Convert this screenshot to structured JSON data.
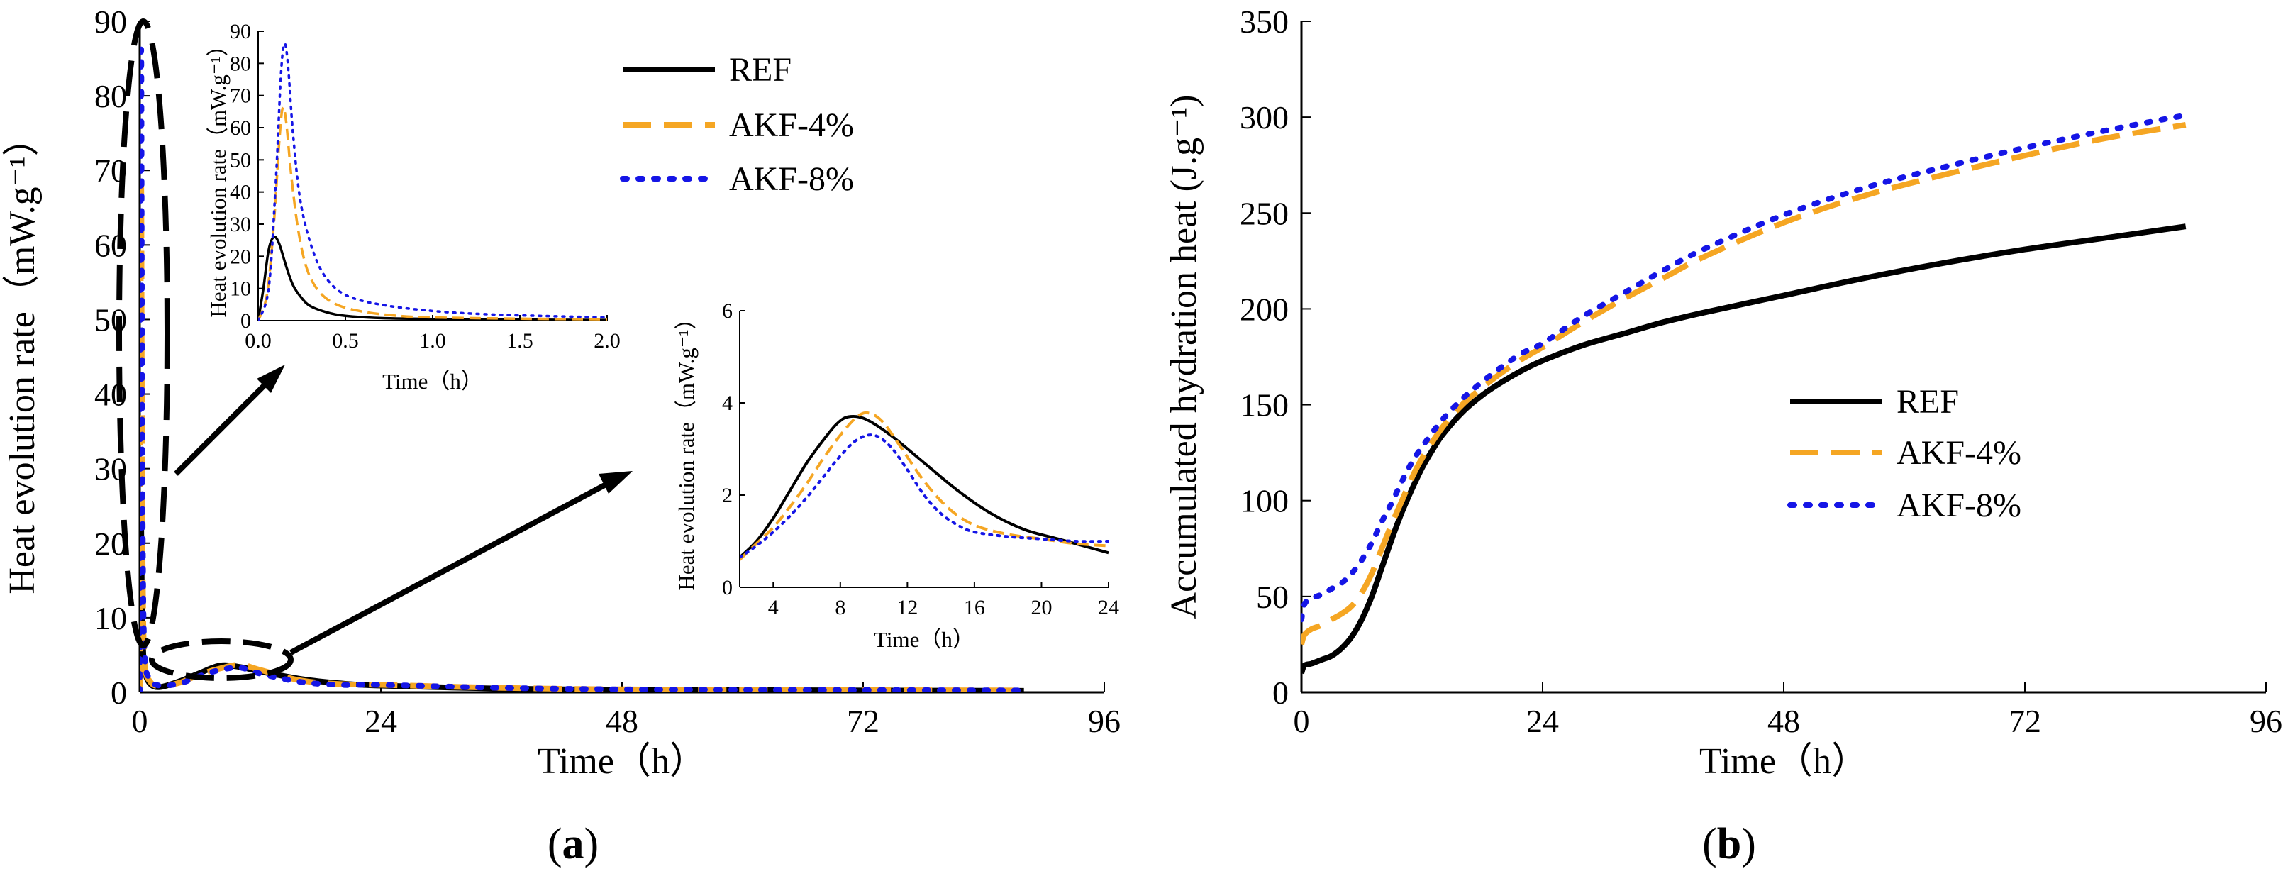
{
  "colors": {
    "REF": "#000000",
    "AKF-4%": "#f5a623",
    "AKF-8%": "#1515e6"
  },
  "legend": [
    "REF",
    "AKF-4%",
    "AKF-8%"
  ],
  "panel_labels": {
    "a_open": "(",
    "a_letter": "a",
    "a_close": ")",
    "b_open": "(",
    "b_letter": "b",
    "b_close": ")"
  },
  "chart_data": [
    {
      "id": "a-main",
      "type": "line",
      "xlabel": "Time（h）",
      "ylabel": "Heat evolution rate（mW.g⁻¹）",
      "xlim": [
        0,
        96
      ],
      "ylim": [
        0,
        90
      ],
      "xticks": [
        0,
        24,
        48,
        72,
        96
      ],
      "yticks": [
        0,
        10,
        20,
        30,
        40,
        50,
        60,
        70,
        80,
        90
      ],
      "series": [
        {
          "name": "REF",
          "x": [
            0,
            0.05,
            0.1,
            0.15,
            0.2,
            0.3,
            0.5,
            1,
            2,
            4,
            6,
            8,
            10,
            12,
            16,
            20,
            24,
            36,
            48,
            60,
            72,
            88
          ],
          "y": [
            0,
            15,
            25,
            22,
            15,
            7,
            3,
            1.2,
            0.7,
            1.5,
            2.6,
            3.6,
            3.4,
            2.8,
            1.8,
            1.2,
            0.9,
            0.5,
            0.35,
            0.3,
            0.25,
            0.2
          ]
        },
        {
          "name": "AKF-4%",
          "x": [
            0,
            0.05,
            0.1,
            0.15,
            0.2,
            0.3,
            0.5,
            1,
            2,
            4,
            6,
            8,
            10,
            12,
            16,
            20,
            24,
            36,
            48,
            60,
            72,
            88
          ],
          "y": [
            0,
            25,
            55,
            68,
            45,
            15,
            4,
            1.5,
            0.8,
            1.3,
            2.4,
            3.2,
            3.7,
            3.0,
            1.6,
            1.1,
            1.0,
            0.6,
            0.4,
            0.35,
            0.3,
            0.25
          ]
        },
        {
          "name": "AKF-8%",
          "x": [
            0,
            0.05,
            0.1,
            0.15,
            0.2,
            0.3,
            0.5,
            1,
            2,
            4,
            6,
            8,
            10,
            12,
            16,
            20,
            24,
            36,
            48,
            60,
            72,
            88
          ],
          "y": [
            0,
            30,
            70,
            86,
            60,
            20,
            5,
            1.8,
            0.9,
            1.2,
            2.2,
            3.0,
            3.3,
            2.5,
            1.4,
            1.0,
            1.0,
            0.6,
            0.4,
            0.35,
            0.3,
            0.25
          ]
        }
      ]
    },
    {
      "id": "a-inset-early",
      "type": "line",
      "xlabel": "Time（h）",
      "ylabel": "Heat evolution rate（mW.g⁻¹）",
      "xlim": [
        0,
        2.0
      ],
      "ylim": [
        0,
        90
      ],
      "xticks": [
        "0.0",
        "0.5",
        "1.0",
        "1.5",
        "2.0"
      ],
      "yticks": [
        0,
        10,
        20,
        30,
        40,
        50,
        60,
        70,
        80,
        90
      ],
      "series": [
        {
          "name": "REF",
          "x": [
            0,
            0.03,
            0.06,
            0.09,
            0.12,
            0.16,
            0.2,
            0.25,
            0.3,
            0.4,
            0.5,
            0.7,
            1.0,
            1.5,
            2.0
          ],
          "y": [
            0,
            10,
            22,
            26,
            24,
            17,
            11,
            7,
            4.5,
            2.5,
            1.5,
            0.8,
            0.5,
            0.3,
            0.2
          ]
        },
        {
          "name": "AKF-4%",
          "x": [
            0,
            0.05,
            0.09,
            0.12,
            0.14,
            0.16,
            0.19,
            0.23,
            0.28,
            0.35,
            0.45,
            0.6,
            0.8,
            1.0,
            1.5,
            2.0
          ],
          "y": [
            0,
            8,
            30,
            55,
            66,
            62,
            45,
            28,
            16,
            9,
            5,
            2.8,
            1.5,
            1.0,
            0.6,
            0.4
          ]
        },
        {
          "name": "AKF-8%",
          "x": [
            0,
            0.06,
            0.1,
            0.13,
            0.15,
            0.17,
            0.2,
            0.24,
            0.3,
            0.38,
            0.5,
            0.7,
            1.0,
            1.3,
            1.6,
            2.0
          ],
          "y": [
            0,
            10,
            42,
            76,
            86,
            80,
            58,
            38,
            24,
            14,
            8,
            5,
            3,
            2,
            1.5,
            1.0
          ]
        }
      ]
    },
    {
      "id": "a-inset-late",
      "type": "line",
      "xlabel": "Time（h）",
      "ylabel": "Heat evolution rate（mW.g⁻¹）",
      "xlim": [
        2,
        24
      ],
      "ylim": [
        0,
        6
      ],
      "xticks": [
        4,
        8,
        12,
        16,
        20,
        24
      ],
      "yticks": [
        0,
        2,
        4,
        6
      ],
      "series": [
        {
          "name": "REF",
          "x": [
            2,
            3,
            4,
            5,
            6,
            7,
            7.8,
            8.5,
            9.5,
            11,
            13,
            15,
            17,
            19,
            21,
            23,
            24
          ],
          "y": [
            0.65,
            1.0,
            1.5,
            2.1,
            2.7,
            3.2,
            3.55,
            3.7,
            3.65,
            3.3,
            2.7,
            2.1,
            1.6,
            1.25,
            1.05,
            0.85,
            0.75
          ]
        },
        {
          "name": "AKF-4%",
          "x": [
            2,
            3,
            4,
            5,
            6,
            7,
            8,
            9,
            9.7,
            10.5,
            11.5,
            13,
            14.5,
            16,
            18,
            20,
            22,
            24
          ],
          "y": [
            0.6,
            0.95,
            1.3,
            1.75,
            2.25,
            2.8,
            3.3,
            3.7,
            3.78,
            3.6,
            3.1,
            2.3,
            1.7,
            1.35,
            1.15,
            1.05,
            0.95,
            0.9
          ]
        },
        {
          "name": "AKF-8%",
          "x": [
            2,
            3,
            4,
            5,
            6,
            7,
            8,
            9,
            10,
            11,
            12,
            13,
            14,
            15,
            16,
            18,
            20,
            22,
            24
          ],
          "y": [
            0.65,
            0.9,
            1.2,
            1.55,
            1.95,
            2.4,
            2.85,
            3.2,
            3.3,
            3.05,
            2.55,
            2.0,
            1.6,
            1.35,
            1.2,
            1.1,
            1.05,
            1.0,
            1.0
          ]
        }
      ]
    },
    {
      "id": "b",
      "type": "line",
      "xlabel": "Time（h）",
      "ylabel": "Accumulated hydration heat (J.g⁻¹)",
      "xlim": [
        0,
        96
      ],
      "ylim": [
        0,
        350
      ],
      "xticks": [
        0,
        24,
        48,
        72,
        96
      ],
      "yticks": [
        0,
        50,
        100,
        150,
        200,
        250,
        300,
        350
      ],
      "series": [
        {
          "name": "REF",
          "x": [
            0,
            0.3,
            1,
            2,
            3,
            4,
            5,
            6,
            7,
            8,
            9,
            10,
            11,
            12,
            13,
            14,
            16,
            18,
            20,
            22,
            24,
            28,
            32,
            36,
            40,
            48,
            56,
            64,
            72,
            80,
            88
          ],
          "y": [
            10,
            14,
            15,
            17,
            19,
            23,
            29,
            38,
            50,
            65,
            80,
            94,
            106,
            117,
            126,
            134,
            146,
            155,
            162,
            168,
            173,
            181,
            187,
            193,
            198,
            207,
            216,
            224,
            231,
            237,
            243
          ]
        },
        {
          "name": "AKF-4%",
          "x": [
            0,
            0.3,
            1,
            2,
            3,
            4,
            5,
            6,
            7,
            8,
            9,
            10,
            11,
            12,
            14,
            16,
            18,
            20,
            22,
            24,
            28,
            32,
            36,
            40,
            48,
            56,
            64,
            72,
            80,
            88
          ],
          "y": [
            25,
            30,
            33,
            35,
            38,
            41,
            45,
            52,
            62,
            75,
            88,
            100,
            112,
            122,
            138,
            150,
            159,
            167,
            174,
            180,
            193,
            205,
            216,
            227,
            245,
            259,
            270,
            280,
            289,
            296
          ]
        },
        {
          "name": "AKF-8%",
          "x": [
            0,
            0.3,
            1,
            2,
            3,
            4,
            5,
            6,
            7,
            8,
            9,
            10,
            11,
            12,
            14,
            16,
            18,
            20,
            22,
            24,
            28,
            32,
            36,
            40,
            48,
            56,
            64,
            72,
            80,
            88
          ],
          "y": [
            38,
            46,
            49,
            51,
            54,
            57,
            62,
            69,
            78,
            89,
            99,
            110,
            120,
            128,
            142,
            153,
            162,
            170,
            177,
            182,
            196,
            208,
            220,
            231,
            249,
            263,
            274,
            284,
            293,
            301
          ]
        }
      ]
    }
  ]
}
